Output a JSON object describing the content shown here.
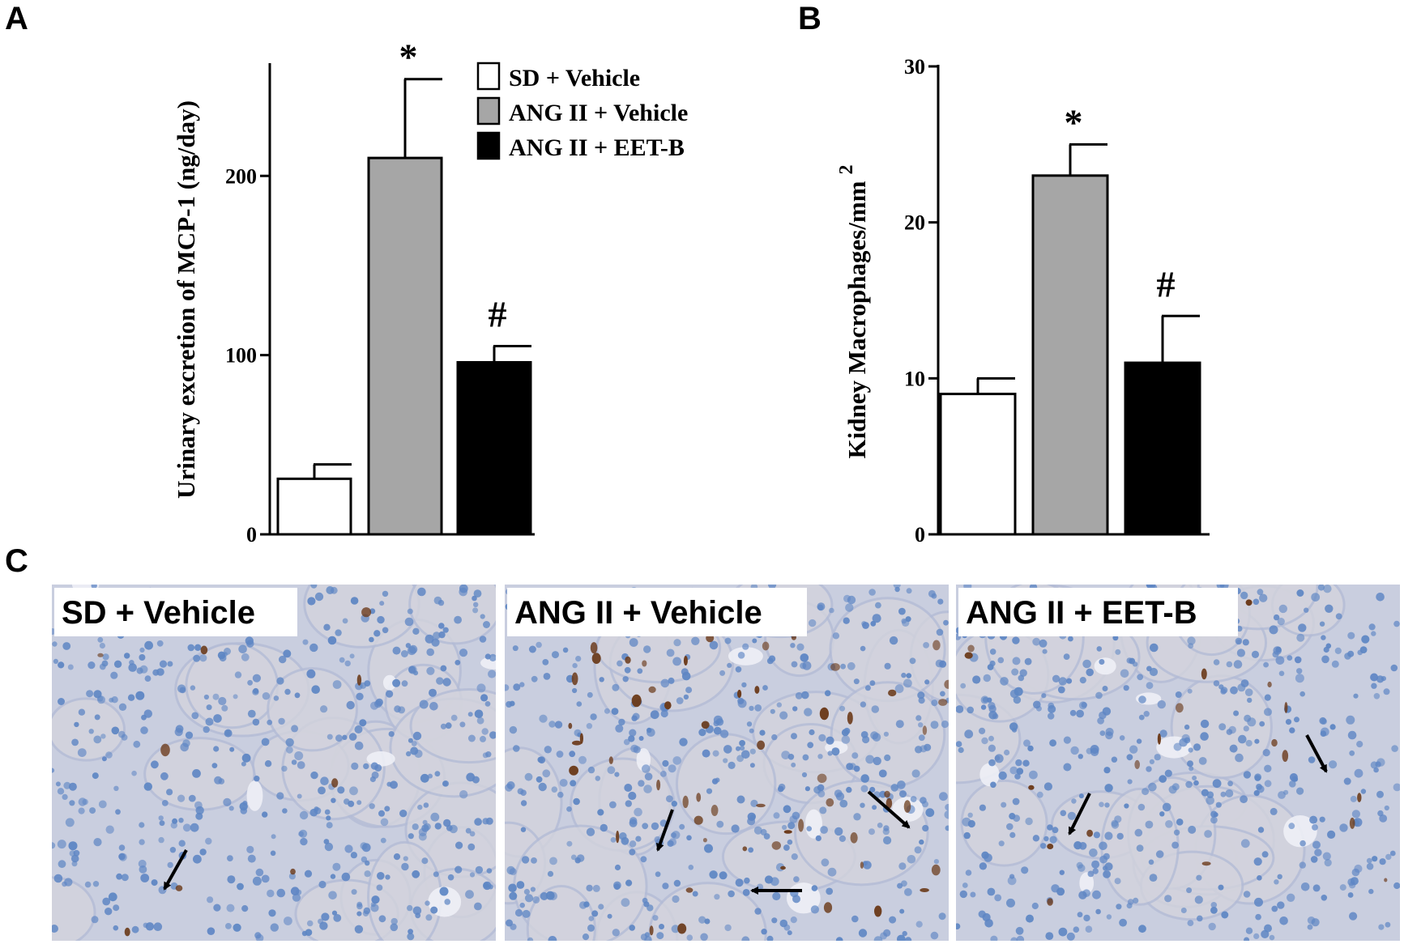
{
  "panels": {
    "a": "A",
    "b": "B",
    "c": "C"
  },
  "colors": {
    "sd_vehicle": "#ffffff",
    "ang_vehicle": "#a6a6a6",
    "ang_eetb": "#000000",
    "tissue_background": "#c9cedf",
    "cell_nuclei": "#5e86c4",
    "macrophage_stain": "#6b3a1a"
  },
  "chart_data": [
    {
      "type": "bar",
      "panel": "A",
      "categories": [
        "SD + Vehicle",
        "ANG II + Vehicle",
        "ANG II + EET-B"
      ],
      "values": [
        31,
        210,
        96
      ],
      "errors": [
        8,
        44,
        9
      ],
      "title": "",
      "xlabel": "",
      "ylabel": "Urinary excretion of MCP-1 (ng/day)",
      "ylim": [
        0,
        262
      ],
      "yticks": [
        0,
        100,
        200
      ],
      "annotations": [
        "",
        "*",
        "#"
      ],
      "legend": {
        "placement": "top-right",
        "entries": [
          "SD + Vehicle",
          "ANG II + Vehicle",
          "ANG II + EET-B"
        ]
      }
    },
    {
      "type": "bar",
      "panel": "B",
      "categories": [
        "SD + Vehicle",
        "ANG II + Vehicle",
        "ANG II + EET-B"
      ],
      "values": [
        9,
        23,
        11
      ],
      "errors": [
        1,
        2,
        3
      ],
      "title": "",
      "xlabel": "",
      "ylabel": "Kidney Macrophages/mm",
      "ylabel_superscript": "2",
      "ylim": [
        0,
        30
      ],
      "yticks": [
        0,
        10,
        20,
        30
      ],
      "annotations": [
        "",
        "*",
        "#"
      ]
    }
  ],
  "micrographs": [
    {
      "label": "SD + Vehicle",
      "arrows": 1
    },
    {
      "label": "ANG II + Vehicle",
      "arrows": 3
    },
    {
      "label": "ANG II + EET-B",
      "arrows": 2
    }
  ]
}
